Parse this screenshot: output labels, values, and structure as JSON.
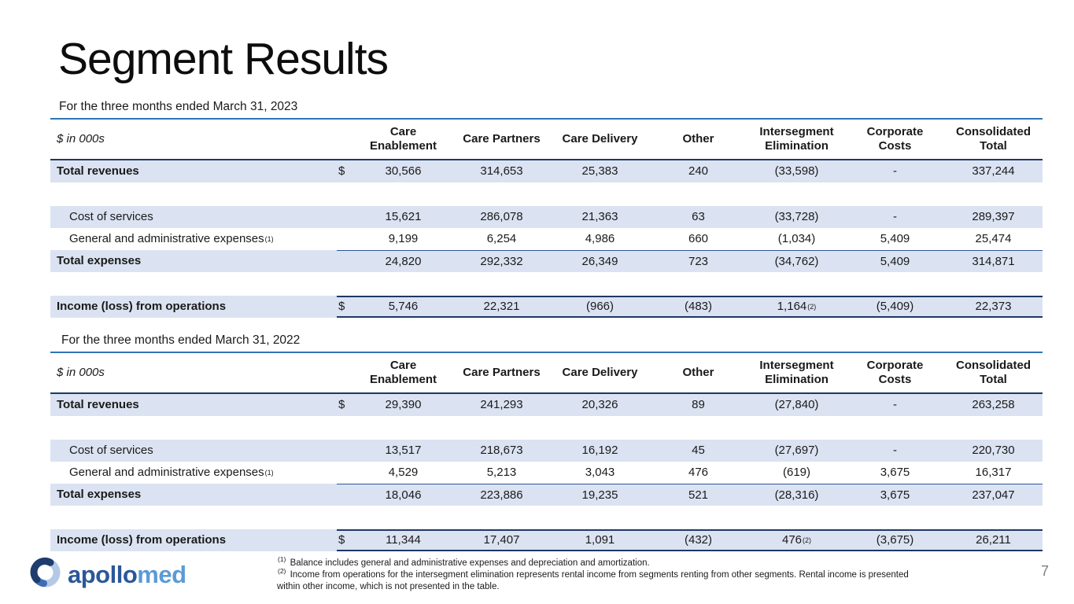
{
  "slide": {
    "title": "Segment Results",
    "page_number": "7",
    "logo": {
      "icon": "apollomed-swirl-icon",
      "primary": "apollo",
      "secondary": "med"
    },
    "colors": {
      "accent_blue": "#2e75b6",
      "dark_navy": "#1f3864",
      "thin_rule_blue": "#2e5496",
      "row_band": "#dbe3f2",
      "logo_dark_blue": "#2b579a",
      "logo_light_blue": "#5b9bd5",
      "page_number_gray": "#7f7f7f"
    },
    "footnotes": [
      {
        "marker": "(1)",
        "text": "Balance includes general and administrative expenses and depreciation and amortization."
      },
      {
        "marker": "(2)",
        "text": "Income from operations for the intersegment elimination represents rental income from segments renting from other segments. Rental income is presented within other income, which is not presented in the table."
      }
    ]
  },
  "tables": [
    {
      "subtitle": "For the three months ended March 31, 2023",
      "units_label": "$ in 000s",
      "columns": [
        "Care\nEnablement",
        "Care Partners",
        "Care Delivery",
        "Other",
        "Intersegment\nElimination",
        "Corporate\nCosts",
        "Consolidated\nTotal"
      ],
      "rows": [
        {
          "label": "Total revenues",
          "style": "total",
          "shaded": true,
          "dollar": "$",
          "values": [
            "30,566",
            "314,653",
            "25,383",
            "240",
            "(33,598)",
            "-",
            "337,244"
          ]
        },
        {
          "spacer": true
        },
        {
          "label": "Cost of services",
          "indent": true,
          "shaded": true,
          "values": [
            "15,621",
            "286,078",
            "21,363",
            "63",
            "(33,728)",
            "-",
            "289,397"
          ]
        },
        {
          "label": "General and administrative expenses",
          "label_sup": "(1)",
          "indent": true,
          "values": [
            "9,199",
            "6,254",
            "4,986",
            "660",
            "(1,034)",
            "5,409",
            "25,474"
          ]
        },
        {
          "label": "Total expenses",
          "style": "total",
          "shaded": true,
          "rule_top": "thin",
          "values": [
            "24,820",
            "292,332",
            "26,349",
            "723",
            "(34,762)",
            "5,409",
            "314,871"
          ]
        },
        {
          "spacer": true
        },
        {
          "label": "Income (loss) from operations",
          "style": "total",
          "shaded": true,
          "dollar": "$",
          "rule_top": "thick",
          "rule_bottom": "thick",
          "values": [
            "5,746",
            "22,321",
            "(966)",
            "(483)",
            "1,164",
            "(5,409)",
            "22,373"
          ],
          "value_sups": {
            "4": "(2)"
          }
        }
      ]
    },
    {
      "subtitle": "For the three months ended March 31, 2022",
      "units_label": "$ in 000s",
      "columns": [
        "Care\nEnablement",
        "Care Partners",
        "Care Delivery",
        "Other",
        "Intersegment\nElimination",
        "Corporate\nCosts",
        "Consolidated\nTotal"
      ],
      "rows": [
        {
          "label": "Total revenues",
          "style": "total",
          "shaded": true,
          "dollar": "$",
          "values": [
            "29,390",
            "241,293",
            "20,326",
            "89",
            "(27,840)",
            "-",
            "263,258"
          ]
        },
        {
          "spacer": true
        },
        {
          "label": "Cost of services",
          "indent": true,
          "shaded": true,
          "values": [
            "13,517",
            "218,673",
            "16,192",
            "45",
            "(27,697)",
            "-",
            "220,730"
          ]
        },
        {
          "label": "General and administrative expenses",
          "label_sup": "(1)",
          "indent": true,
          "values": [
            "4,529",
            "5,213",
            "3,043",
            "476",
            "(619)",
            "3,675",
            "16,317"
          ]
        },
        {
          "label": "Total expenses",
          "style": "total",
          "shaded": true,
          "rule_top": "thin",
          "values": [
            "18,046",
            "223,886",
            "19,235",
            "521",
            "(28,316)",
            "3,675",
            "237,047"
          ]
        },
        {
          "spacer": true
        },
        {
          "label": "Income (loss) from operations",
          "style": "total",
          "shaded": true,
          "dollar": "$",
          "rule_top": "thick",
          "rule_bottom": "thick",
          "values": [
            "11,344",
            "17,407",
            "1,091",
            "(432)",
            "476",
            "(3,675)",
            "26,211"
          ],
          "value_sups": {
            "4": "(2)"
          }
        }
      ]
    }
  ]
}
